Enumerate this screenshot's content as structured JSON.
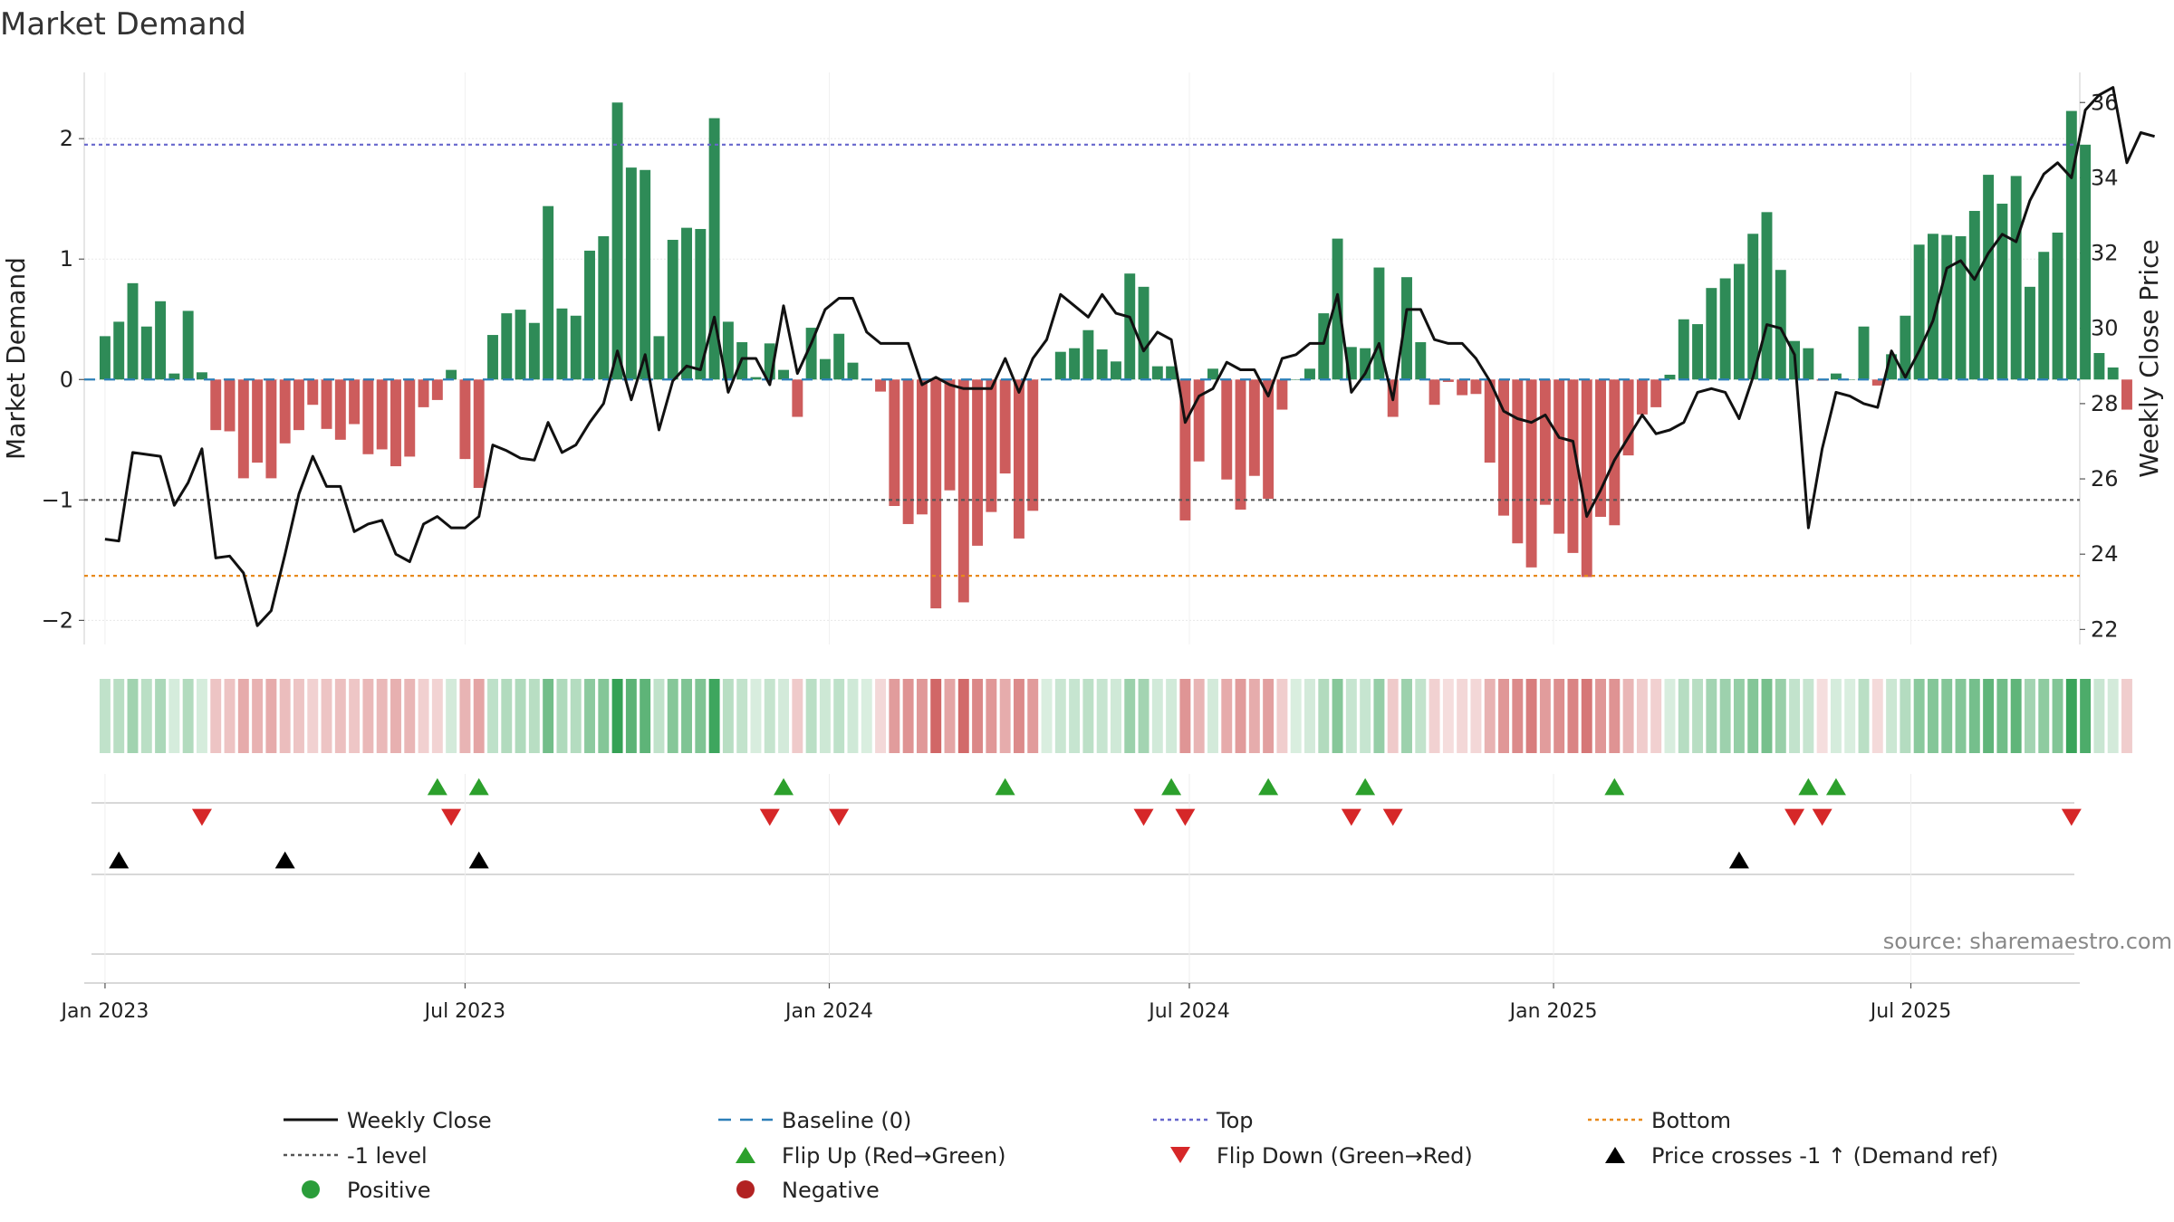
{
  "chart_data": {
    "type": "bar",
    "title": "Market Demand",
    "ylabel_left": "Market Demand",
    "ylabel_right": "Weekly Close Price",
    "source": "source: sharemaestro.com",
    "ylim_left": [
      -2.2,
      2.55
    ],
    "ylim_right": [
      21.6,
      36.8
    ],
    "yticks_left": [
      2,
      1,
      0,
      -1,
      -2
    ],
    "yticks_left_labels": [
      "2",
      "1",
      "0",
      "−1",
      "−2"
    ],
    "yticks_right": [
      36,
      34,
      32,
      30,
      28,
      26,
      24,
      22
    ],
    "yticks_right_labels": [
      "36",
      "34",
      "32",
      "30",
      "28",
      "26",
      "24",
      "22"
    ],
    "x_range_weeks": [
      -1.5,
      142.6
    ],
    "x_ticks": [
      {
        "label": "Jan 2023",
        "week": 0
      },
      {
        "label": "Jul 2023",
        "week": 26
      },
      {
        "label": "Jan 2024",
        "week": 52.3
      },
      {
        "label": "Jul 2024",
        "week": 78.3
      },
      {
        "label": "Jan 2025",
        "week": 104.6
      },
      {
        "label": "Jul 2025",
        "week": 130.4
      }
    ],
    "reference_lines": [
      {
        "name": "Top",
        "value": 1.95,
        "color": "#6666cc",
        "style": "dotted"
      },
      {
        "name": "-1 level",
        "value": -1.0,
        "color": "#555555",
        "style": "dotted"
      },
      {
        "name": "Bottom",
        "value": -1.63,
        "color": "#e8891b",
        "style": "dotted"
      },
      {
        "name": "Baseline (0)",
        "value": 0,
        "color": "#2c7fb8",
        "style": "dashed"
      }
    ],
    "demand": [
      0.36,
      0.48,
      0.8,
      0.44,
      0.65,
      0.05,
      0.57,
      0.06,
      -0.42,
      -0.43,
      -0.82,
      -0.69,
      -0.82,
      -0.53,
      -0.42,
      -0.21,
      -0.41,
      -0.5,
      -0.37,
      -0.62,
      -0.58,
      -0.72,
      -0.64,
      -0.23,
      -0.17,
      0.08,
      -0.66,
      -0.9,
      0.37,
      0.55,
      0.58,
      0.47,
      1.44,
      0.59,
      0.53,
      1.07,
      1.19,
      2.3,
      1.76,
      1.74,
      0.36,
      1.16,
      1.26,
      1.25,
      2.17,
      0.48,
      0.31,
      0.02,
      0.3,
      0.08,
      -0.31,
      0.43,
      0.17,
      0.38,
      0.14,
      0.0,
      -0.1,
      -1.05,
      -1.2,
      -1.12,
      -1.9,
      -0.92,
      -1.85,
      -1.38,
      -1.1,
      -0.78,
      -1.32,
      -1.09,
      0.0,
      0.23,
      0.26,
      0.41,
      0.25,
      0.15,
      0.88,
      0.77,
      0.11,
      0.11,
      -1.17,
      -0.68,
      0.09,
      -0.83,
      -1.08,
      -0.8,
      -0.99,
      -0.25,
      0.0,
      0.09,
      0.55,
      1.17,
      0.27,
      0.26,
      0.93,
      -0.31,
      0.85,
      0.31,
      -0.21,
      -0.02,
      -0.13,
      -0.12,
      -0.69,
      -1.13,
      -1.36,
      -1.56,
      -1.04,
      -1.28,
      -1.44,
      -1.64,
      -1.14,
      -1.21,
      -0.63,
      -0.29,
      -0.23,
      0.04,
      0.5,
      0.46,
      0.76,
      0.84,
      0.96,
      1.21,
      1.39,
      0.91,
      0.32,
      0.26,
      -0.01,
      0.05,
      0.0,
      0.44,
      -0.05,
      0.21,
      0.53,
      1.12,
      1.21,
      1.2,
      1.19,
      1.4,
      1.7,
      1.46,
      1.69,
      0.77,
      1.06,
      1.22,
      2.23,
      1.95,
      0.22,
      0.1,
      -0.25
    ],
    "weekly_close": [
      24.4,
      24.35,
      26.7,
      26.65,
      26.6,
      25.3,
      25.9,
      26.8,
      23.9,
      23.95,
      23.5,
      22.1,
      22.5,
      24.0,
      25.6,
      26.6,
      25.8,
      25.8,
      24.6,
      24.8,
      24.9,
      24.0,
      23.8,
      24.8,
      25.0,
      24.7,
      24.7,
      25.0,
      26.9,
      26.75,
      26.55,
      26.5,
      27.5,
      26.7,
      26.9,
      27.5,
      28.0,
      29.4,
      28.1,
      29.3,
      27.3,
      28.6,
      29.0,
      28.9,
      30.3,
      28.3,
      29.2,
      29.2,
      28.5,
      30.6,
      28.8,
      29.6,
      30.5,
      30.8,
      30.8,
      29.9,
      29.6,
      29.6,
      29.6,
      28.5,
      28.7,
      28.5,
      28.4,
      28.4,
      28.4,
      29.2,
      28.3,
      29.2,
      29.7,
      30.9,
      30.6,
      30.3,
      30.9,
      30.4,
      30.3,
      29.4,
      29.9,
      29.7,
      27.5,
      28.2,
      28.4,
      29.1,
      28.9,
      28.9,
      28.2,
      29.2,
      29.3,
      29.6,
      29.6,
      30.9,
      28.3,
      28.8,
      29.6,
      28.1,
      30.5,
      30.5,
      29.7,
      29.6,
      29.6,
      29.2,
      28.6,
      27.8,
      27.6,
      27.5,
      27.7,
      27.1,
      27.0,
      25.0,
      25.7,
      26.5,
      27.1,
      27.7,
      27.2,
      27.3,
      27.5,
      28.3,
      28.4,
      28.3,
      27.6,
      28.7,
      30.1,
      30.0,
      29.3,
      24.7,
      26.8,
      28.3,
      28.2,
      28.0,
      27.9,
      29.4,
      28.7,
      29.4,
      30.2,
      31.6,
      31.8,
      31.3,
      32.0,
      32.5,
      32.3,
      33.4,
      34.1,
      34.4,
      34.0,
      35.8,
      36.2,
      36.4,
      34.4,
      35.2,
      35.1
    ],
    "flip_up_weeks": [
      24,
      27,
      49,
      65,
      77,
      84,
      91,
      109,
      123,
      125
    ],
    "flip_down_weeks": [
      7,
      25,
      48,
      53,
      75,
      78,
      90,
      93,
      122,
      124,
      142
    ],
    "price_cross_weeks": [
      1,
      13,
      27,
      118
    ],
    "legend": [
      {
        "label": "Weekly Close",
        "marker": "line",
        "color": "#111111"
      },
      {
        "label": "Baseline (0)",
        "marker": "dashed",
        "color": "#2c7fb8"
      },
      {
        "label": "Top",
        "marker": "dotted",
        "color": "#6666cc"
      },
      {
        "label": "Bottom",
        "marker": "dotted",
        "color": "#e8891b"
      },
      {
        "label": "-1 level",
        "marker": "dotted",
        "color": "#555555"
      },
      {
        "label": "Flip Up (Red→Green)",
        "marker": "triangle-up",
        "color": "#2ca02c"
      },
      {
        "label": "Flip Down (Green→Red)",
        "marker": "triangle-down",
        "color": "#d62728"
      },
      {
        "label": "Price crosses -1 ↑ (Demand ref)",
        "marker": "triangle-up",
        "color": "#000000"
      },
      {
        "label": "Positive",
        "marker": "circle",
        "color": "#2a9d3a"
      },
      {
        "label": "Negative",
        "marker": "circle",
        "color": "#b22222"
      }
    ]
  },
  "colors": {
    "positive_bar": "#2e8b57",
    "negative_bar": "#cd5c5c",
    "heat_pos": "#2e9e50",
    "heat_neg": "#c84848",
    "grid": "#e8e8e8",
    "axis_line": "#cccccc",
    "text": "#222222",
    "source_text": "#888888"
  }
}
